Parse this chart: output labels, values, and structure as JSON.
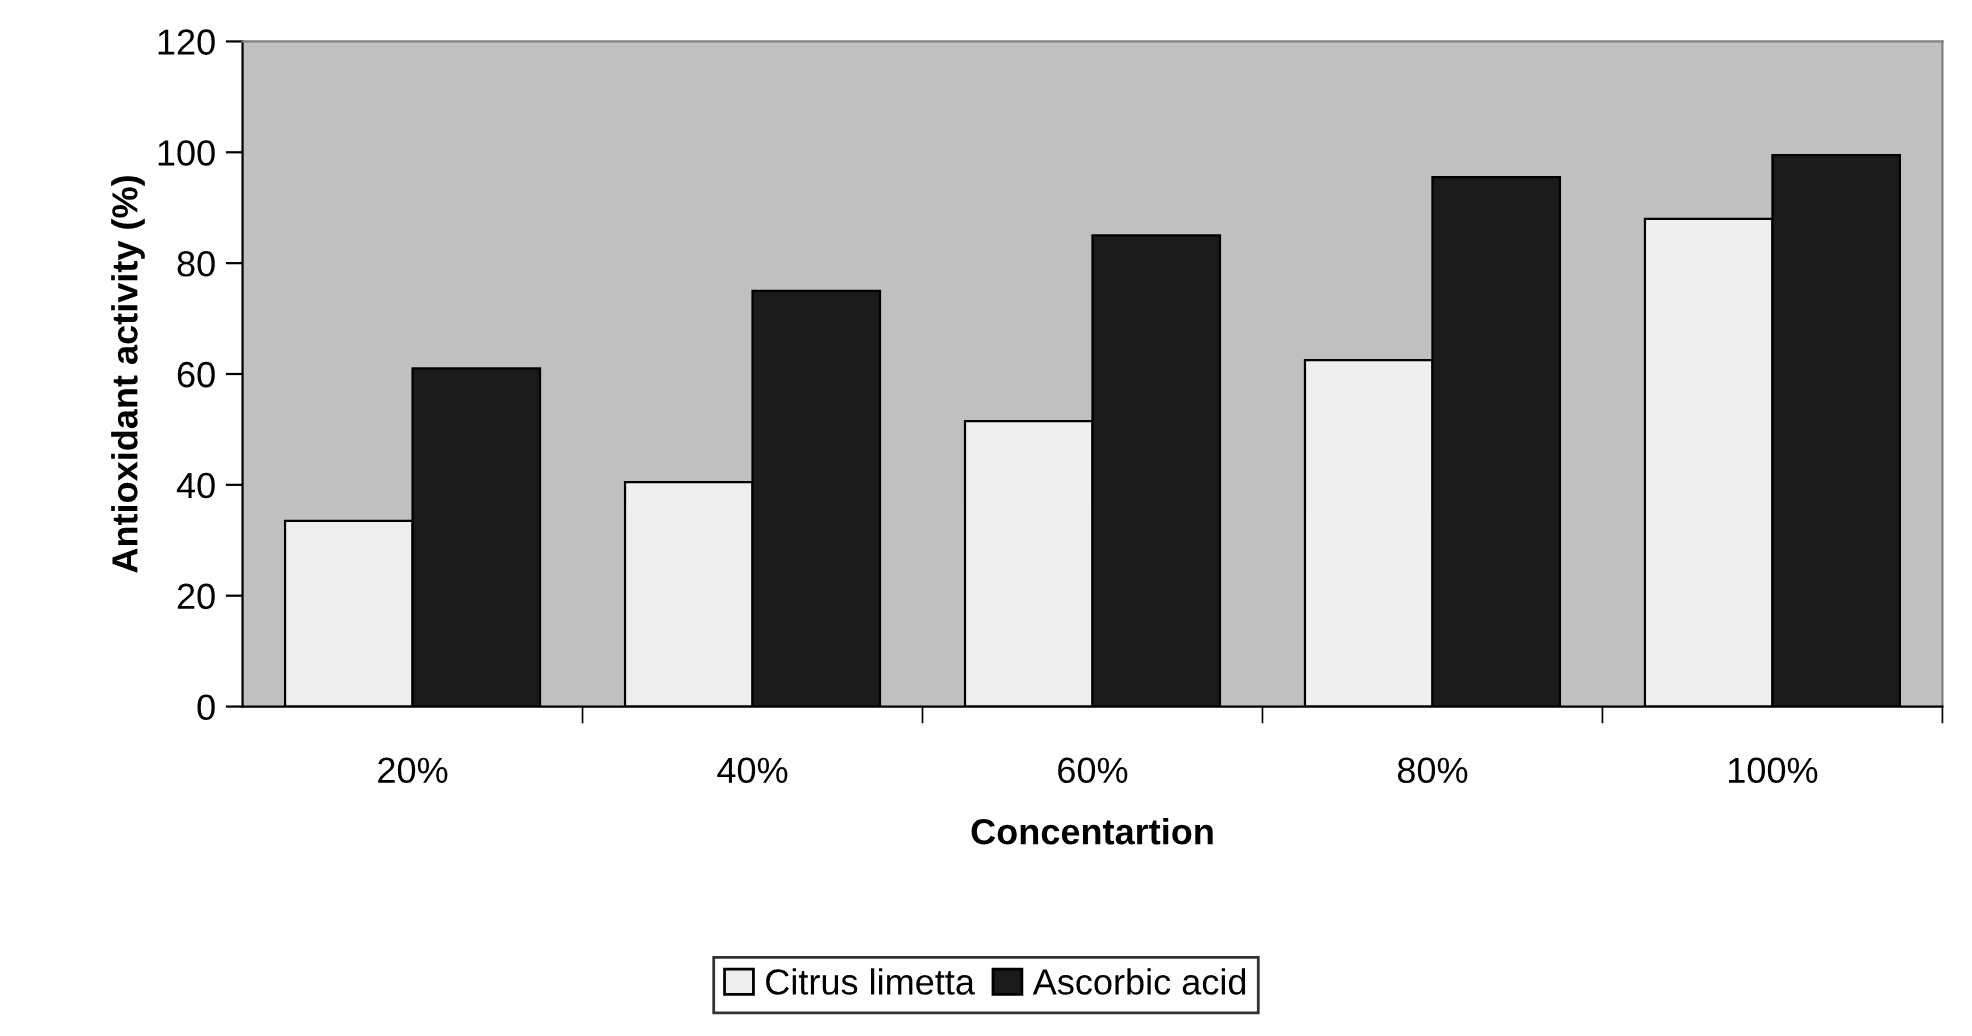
{
  "chart_data": {
    "type": "bar",
    "xlabel": "Concentartion",
    "ylabel": "Antioxidant activity (%)",
    "categories": [
      "20%",
      "40%",
      "60%",
      "80%",
      "100%"
    ],
    "series": [
      {
        "name": "Citrus limetta",
        "color": "#eeeeee",
        "values": [
          33.5,
          40.5,
          51.5,
          62.5,
          88
        ]
      },
      {
        "name": "Ascorbic acid",
        "color": "#1a1a1a",
        "values": [
          61,
          75,
          85,
          95.5,
          99.5
        ]
      }
    ],
    "ylim": [
      0,
      120
    ],
    "yticks": [
      0,
      20,
      40,
      60,
      80,
      100,
      120
    ],
    "grid": false,
    "legend": "bottom"
  }
}
